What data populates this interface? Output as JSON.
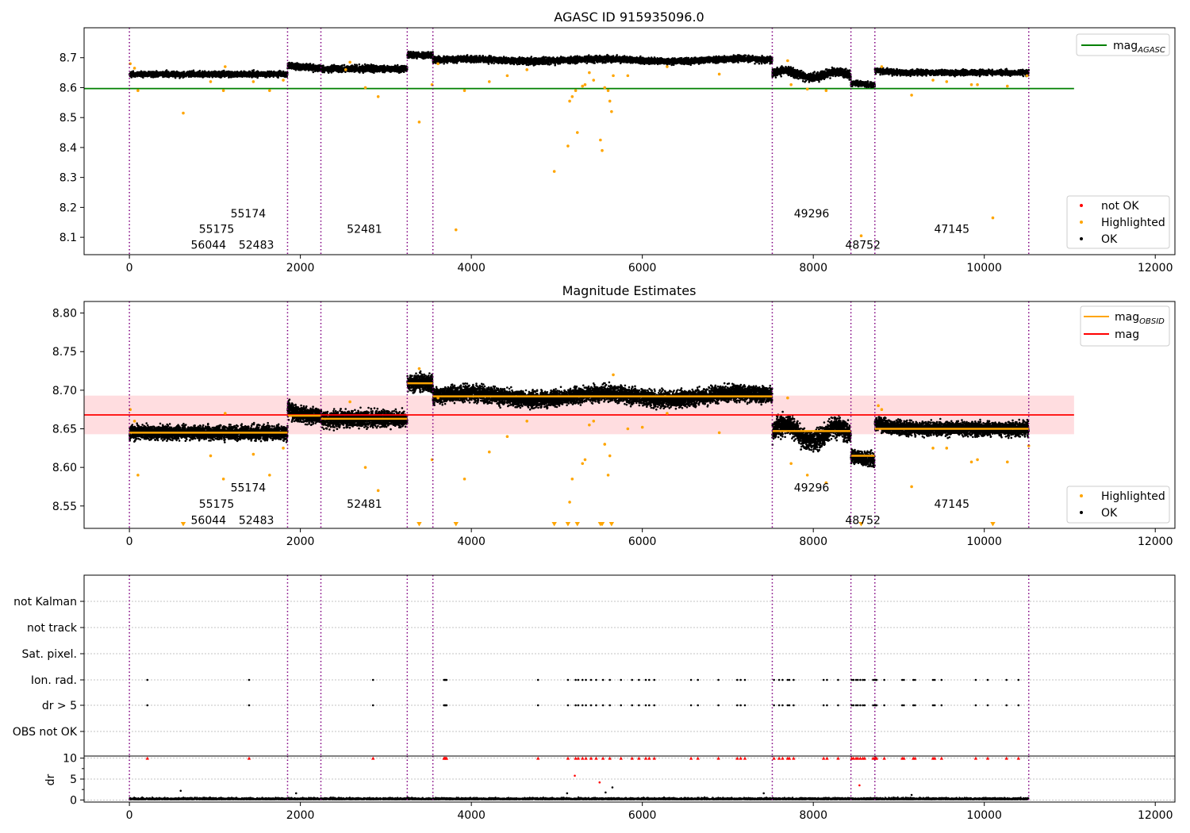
{
  "figure": {
    "colors": {
      "ok": "#000000",
      "highlighted": "#ffa500",
      "not_ok": "#ff0000",
      "agasc": "#008000",
      "mag": "#ff0000",
      "mag_obsid": "#ffa500",
      "obs_line": "#800080",
      "band": "#ffdde0"
    }
  },
  "chart_data": [
    {
      "type": "scatter",
      "title": "AGASC ID 915935096.0",
      "xlim": [
        -530,
        12230
      ],
      "ylim": [
        8.042,
        8.8
      ],
      "x_ticks": [
        0,
        2000,
        4000,
        6000,
        8000,
        10000,
        12000
      ],
      "y_ticks": [
        8.1,
        8.2,
        8.3,
        8.4,
        8.5,
        8.6,
        8.7
      ],
      "legend_lines": {
        "position": "top-right",
        "entries": [
          {
            "label": "mag",
            "sub": "AGASC",
            "color": "#008000"
          }
        ]
      },
      "legend_points": {
        "position": "bottom-right",
        "entries": [
          {
            "label": "not OK",
            "color": "#ff0000"
          },
          {
            "label": "Highlighted",
            "color": "#ffa500"
          },
          {
            "label": "OK",
            "color": "#000000"
          }
        ]
      },
      "reference_lines": [
        {
          "name": "mag AGASC",
          "y": 8.597,
          "x": [
            -530,
            11050
          ],
          "color": "#008000"
        }
      ],
      "obsids": [
        {
          "label": "56044",
          "x0": 0,
          "x1": 1850,
          "label_x": 925,
          "label_y": 8.075,
          "mean": 8.645,
          "noise": 0.006
        },
        {
          "label": "55175",
          "x0": 1850,
          "x1": 2240,
          "label_x": 1020,
          "label_y": 8.128,
          "mean": 8.667,
          "noise": 0.007
        },
        {
          "label": "55174",
          "x0": 2240,
          "x1": 3250,
          "label_x": 1390,
          "label_y": 8.18,
          "mean": 8.663,
          "noise": 0.007
        },
        {
          "label": "52483",
          "x0": 3250,
          "x1": 3550,
          "label_x": 1485,
          "label_y": 8.075,
          "mean": 8.709,
          "noise": 0.007
        },
        {
          "label": "52481",
          "x0": 3550,
          "x1": 7520,
          "label_x": 2750,
          "label_y": 8.128,
          "mean": 8.692,
          "noise": 0.007
        },
        {
          "label": "49296",
          "x0": 7520,
          "x1": 8440,
          "label_x": 7980,
          "label_y": 8.18,
          "mean": 8.647,
          "noise": 0.009
        },
        {
          "label": "48752",
          "x0": 8440,
          "x1": 8720,
          "label_x": 8580,
          "label_y": 8.075,
          "mean": 8.615,
          "noise": 0.006
        },
        {
          "label": "47145",
          "x0": 8720,
          "x1": 10520,
          "label_x": 9620,
          "label_y": 8.128,
          "mean": 8.65,
          "noise": 0.006
        }
      ],
      "highlighted_points": [
        [
          10,
          8.68
        ],
        [
          60,
          8.665
        ],
        [
          100,
          8.59
        ],
        [
          630,
          8.515
        ],
        [
          950,
          8.62
        ],
        [
          1100,
          8.59
        ],
        [
          1120,
          8.67
        ],
        [
          1450,
          8.62
        ],
        [
          1640,
          8.59
        ],
        [
          1800,
          8.625
        ],
        [
          2530,
          8.66
        ],
        [
          2580,
          8.685
        ],
        [
          2760,
          8.6
        ],
        [
          2910,
          8.57
        ],
        [
          3390,
          8.485
        ],
        [
          3540,
          8.61
        ],
        [
          3610,
          8.68
        ],
        [
          3820,
          8.125
        ],
        [
          3920,
          8.59
        ],
        [
          4210,
          8.62
        ],
        [
          4420,
          8.64
        ],
        [
          4650,
          8.66
        ],
        [
          4970,
          8.32
        ],
        [
          5130,
          8.405
        ],
        [
          5150,
          8.555
        ],
        [
          5180,
          8.57
        ],
        [
          5220,
          8.59
        ],
        [
          5240,
          8.45
        ],
        [
          5300,
          8.605
        ],
        [
          5330,
          8.61
        ],
        [
          5380,
          8.65
        ],
        [
          5430,
          8.625
        ],
        [
          5510,
          8.425
        ],
        [
          5530,
          8.39
        ],
        [
          5560,
          8.6
        ],
        [
          5600,
          8.59
        ],
        [
          5620,
          8.555
        ],
        [
          5640,
          8.52
        ],
        [
          5660,
          8.64
        ],
        [
          5830,
          8.64
        ],
        [
          6290,
          8.67
        ],
        [
          6900,
          8.645
        ],
        [
          7700,
          8.69
        ],
        [
          7740,
          8.61
        ],
        [
          7930,
          8.595
        ],
        [
          8150,
          8.59
        ],
        [
          8560,
          8.105
        ],
        [
          8800,
          8.67
        ],
        [
          9150,
          8.575
        ],
        [
          9400,
          8.625
        ],
        [
          9560,
          8.62
        ],
        [
          9850,
          8.61
        ],
        [
          9920,
          8.61
        ],
        [
          10100,
          8.165
        ],
        [
          10270,
          8.605
        ],
        [
          10500,
          8.64
        ]
      ]
    },
    {
      "type": "scatter",
      "title": "Magnitude Estimates",
      "xlim": [
        -530,
        12230
      ],
      "ylim": [
        8.521,
        8.815
      ],
      "x_ticks": [
        0,
        2000,
        4000,
        6000,
        8000,
        10000,
        12000
      ],
      "y_ticks": [
        8.55,
        8.6,
        8.65,
        8.7,
        8.75,
        8.8
      ],
      "legend_lines": {
        "position": "top-right",
        "entries": [
          {
            "label": "mag",
            "sub": "OBSID",
            "color": "#ffa500"
          },
          {
            "label": "mag",
            "sub": "",
            "color": "#ff0000"
          }
        ]
      },
      "legend_points": {
        "position": "bottom-right",
        "entries": [
          {
            "label": "Highlighted",
            "color": "#ffa500"
          },
          {
            "label": "OK",
            "color": "#000000"
          }
        ]
      },
      "reference_lines": [
        {
          "name": "mag",
          "y": 8.668,
          "x": [
            -530,
            11050
          ],
          "color": "#ff0000"
        }
      ],
      "band": {
        "y0": 8.643,
        "y1": 8.693,
        "x": [
          -530,
          11050
        ]
      },
      "obsid_label_y": {
        "56044": 8.532,
        "55175": 8.553,
        "55174": 8.574,
        "52483": 8.532,
        "52481": 8.553,
        "49296": 8.574,
        "48752": 8.532,
        "47145": 8.553
      },
      "highlighted_points": [
        [
          10,
          8.675
        ],
        [
          60,
          8.66
        ],
        [
          100,
          8.59
        ],
        [
          950,
          8.615
        ],
        [
          1100,
          8.585
        ],
        [
          1120,
          8.67
        ],
        [
          1450,
          8.617
        ],
        [
          1640,
          8.59
        ],
        [
          1800,
          8.625
        ],
        [
          2580,
          8.685
        ],
        [
          2760,
          8.6
        ],
        [
          2910,
          8.57
        ],
        [
          3390,
          8.728
        ],
        [
          3540,
          8.61
        ],
        [
          3610,
          8.69
        ],
        [
          3920,
          8.585
        ],
        [
          4210,
          8.62
        ],
        [
          4420,
          8.64
        ],
        [
          4650,
          8.66
        ],
        [
          5150,
          8.555
        ],
        [
          5180,
          8.585
        ],
        [
          5300,
          8.605
        ],
        [
          5330,
          8.61
        ],
        [
          5380,
          8.655
        ],
        [
          5430,
          8.66
        ],
        [
          5560,
          8.63
        ],
        [
          5600,
          8.59
        ],
        [
          5620,
          8.615
        ],
        [
          5660,
          8.72
        ],
        [
          5830,
          8.65
        ],
        [
          6000,
          8.652
        ],
        [
          6290,
          8.67
        ],
        [
          6900,
          8.645
        ],
        [
          7700,
          8.69
        ],
        [
          7740,
          8.605
        ],
        [
          7930,
          8.59
        ],
        [
          8150,
          8.58
        ],
        [
          8760,
          8.68
        ],
        [
          8800,
          8.675
        ],
        [
          9150,
          8.575
        ],
        [
          9400,
          8.625
        ],
        [
          9560,
          8.625
        ],
        [
          9850,
          8.607
        ],
        [
          9920,
          8.61
        ],
        [
          10270,
          8.607
        ],
        [
          10520,
          8.628
        ]
      ],
      "below_range_markers": [
        630,
        3390,
        3820,
        4970,
        5130,
        5240,
        5510,
        5530,
        5640,
        8560,
        10100
      ]
    },
    {
      "type": "scatter",
      "title": "",
      "xlim": [
        -530,
        12230
      ],
      "categories": [
        "not Kalman",
        "not track",
        "Sat. pixel.",
        "Ion. rad.",
        "dr > 5",
        "OBS not OK"
      ],
      "flag_x": [
        210,
        1400,
        2850,
        3680,
        3690,
        3700,
        3710,
        4780,
        5130,
        5220,
        5250,
        5300,
        5340,
        5400,
        5460,
        5540,
        5620,
        5750,
        5880,
        5960,
        6040,
        6080,
        6140,
        6570,
        6650,
        6890,
        7110,
        7150,
        7200,
        7540,
        7600,
        7640,
        7700,
        7720,
        7770,
        8120,
        8160,
        8290,
        8450,
        8470,
        8500,
        8520,
        8550,
        8580,
        8600,
        8700,
        8720,
        8730,
        8740,
        8830,
        9040,
        9060,
        9170,
        9190,
        9400,
        9420,
        9500,
        9900,
        10040,
        10260,
        10400
      ]
    },
    {
      "type": "scatter",
      "title": "",
      "ylabel": "dr",
      "xlim": [
        -530,
        12230
      ],
      "ylim": [
        -0.5,
        10.5
      ],
      "x_ticks": [
        0,
        2000,
        4000,
        6000,
        8000,
        10000,
        12000
      ],
      "y_ticks": [
        0,
        5,
        10
      ],
      "capped_value": 10,
      "outliers": [
        [
          600,
          2.2
        ],
        [
          1950,
          1.6
        ],
        [
          5120,
          1.6
        ],
        [
          5210,
          5.8
        ],
        [
          5500,
          4.2
        ],
        [
          5570,
          1.8
        ],
        [
          5650,
          3.0
        ],
        [
          7420,
          1.6
        ],
        [
          8540,
          3.5
        ],
        [
          9150,
          1.2
        ]
      ]
    }
  ]
}
